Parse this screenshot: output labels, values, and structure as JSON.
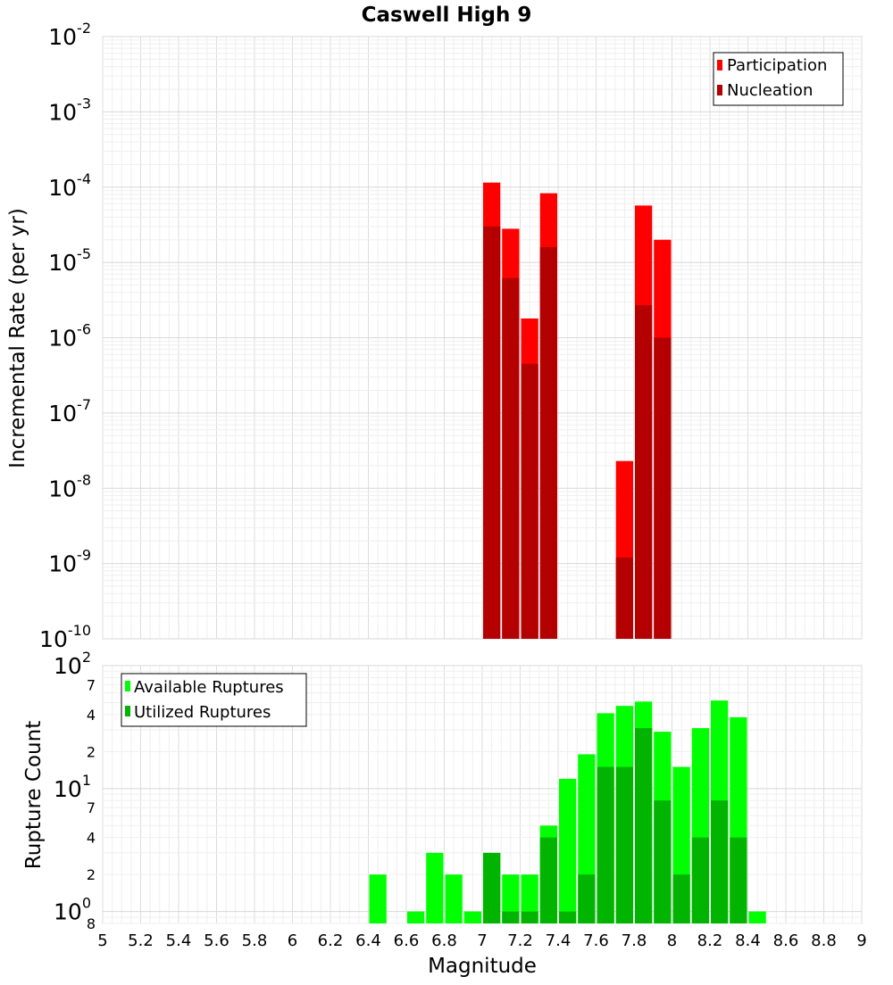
{
  "chart_data": [
    {
      "type": "bar",
      "title": "Caswell High 9",
      "ylabel": "Incremental Rate (per yr)",
      "xlabel": "",
      "yscale": "log",
      "ylim": [
        1e-10,
        0.01
      ],
      "xlim": [
        5,
        9
      ],
      "bar_width": 0.1,
      "y_tick_labels": [
        {
          "base": "10",
          "exp": "-2",
          "value": 0.01
        },
        {
          "base": "10",
          "exp": "-3",
          "value": 0.001
        },
        {
          "base": "10",
          "exp": "-4",
          "value": 0.0001
        },
        {
          "base": "10",
          "exp": "-5",
          "value": 1e-05
        },
        {
          "base": "10",
          "exp": "-6",
          "value": 1e-06
        },
        {
          "base": "10",
          "exp": "-7",
          "value": 1e-07
        },
        {
          "base": "10",
          "exp": "-8",
          "value": 1e-08
        },
        {
          "base": "10",
          "exp": "-9",
          "value": 1e-09
        },
        {
          "base": "10",
          "exp": "-10",
          "value": 1e-10
        }
      ],
      "legend_position": "top-right",
      "series": [
        {
          "name": "Participation",
          "color": "#ff0000",
          "x": [
            7.05,
            7.15,
            7.25,
            7.35,
            7.75,
            7.85,
            7.95
          ],
          "values": [
            0.000115,
            2.8e-05,
            1.8e-06,
            8.3e-05,
            2.3e-08,
            5.7e-05,
            2e-05
          ]
        },
        {
          "name": "Nucleation",
          "color": "#b40000",
          "x": [
            7.05,
            7.15,
            7.25,
            7.35,
            7.75,
            7.85,
            7.95
          ],
          "values": [
            3e-05,
            6.2e-06,
            4.5e-07,
            1.6e-05,
            1.2e-09,
            2.7e-06,
            1e-06
          ]
        }
      ]
    },
    {
      "type": "bar",
      "title": "",
      "ylabel": "Rupture Count",
      "xlabel": "Magnitude",
      "yscale": "log",
      "ylim": [
        0.8,
        100
      ],
      "xlim": [
        5,
        9
      ],
      "bar_width": 0.1,
      "x_ticks": [
        "5",
        "5.2",
        "5.4",
        "5.6",
        "5.8",
        "6",
        "6.2",
        "6.4",
        "6.6",
        "6.8",
        "7",
        "7.2",
        "7.4",
        "7.6",
        "7.8",
        "8",
        "8.2",
        "8.4",
        "8.6",
        "8.8",
        "9"
      ],
      "y_tick_labels": [
        {
          "base": "10",
          "exp": "2",
          "value": 100
        },
        {
          "base": "7",
          "exp": "",
          "value": 70,
          "minor": true
        },
        {
          "base": "4",
          "exp": "",
          "value": 40,
          "minor": true
        },
        {
          "base": "2",
          "exp": "",
          "value": 20,
          "minor": true
        },
        {
          "base": "10",
          "exp": "1",
          "value": 10
        },
        {
          "base": "7",
          "exp": "",
          "value": 7,
          "minor": true
        },
        {
          "base": "4",
          "exp": "",
          "value": 4,
          "minor": true
        },
        {
          "base": "2",
          "exp": "",
          "value": 2,
          "minor": true
        },
        {
          "base": "10",
          "exp": "0",
          "value": 1
        },
        {
          "base": "8",
          "exp": "",
          "value": 0.8,
          "minor": true
        }
      ],
      "legend_position": "top-left",
      "series": [
        {
          "name": "Available Ruptures",
          "color": "#00ff00",
          "x": [
            6.45,
            6.65,
            6.75,
            6.85,
            6.95,
            7.05,
            7.15,
            7.25,
            7.35,
            7.45,
            7.55,
            7.65,
            7.75,
            7.85,
            7.95,
            8.05,
            8.15,
            8.25,
            8.35,
            8.45
          ],
          "values": [
            2,
            1,
            3,
            2,
            1,
            3,
            2,
            2,
            5,
            12,
            19,
            41,
            47,
            51,
            29,
            15,
            31,
            52,
            38,
            1
          ]
        },
        {
          "name": "Utilized Ruptures",
          "color": "#00b400",
          "x": [
            7.05,
            7.15,
            7.25,
            7.35,
            7.45,
            7.55,
            7.65,
            7.75,
            7.85,
            7.95,
            8.05,
            8.15,
            8.25,
            8.35
          ],
          "values": [
            3,
            1,
            1,
            4,
            1,
            2,
            15,
            15,
            31,
            8,
            2,
            4,
            8,
            4
          ]
        }
      ]
    }
  ]
}
